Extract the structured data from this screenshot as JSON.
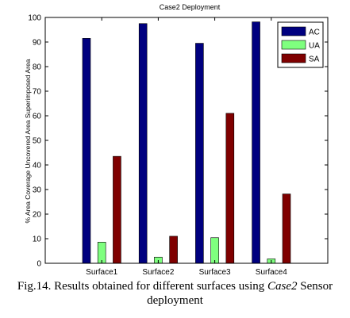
{
  "chart_data": {
    "type": "bar",
    "title": "Case2 Deployment",
    "ylabel": "% Area Coverage Uncovered Area Superimposed Area",
    "xlabel": "",
    "categories": [
      "Surface1",
      "Surface2",
      "Surface3",
      "Surface4"
    ],
    "ylim": [
      0,
      100
    ],
    "yticks": [
      0,
      10,
      20,
      30,
      40,
      50,
      60,
      70,
      80,
      90,
      100
    ],
    "legend_position": "top-right",
    "grid": false,
    "series": [
      {
        "name": "AC",
        "color": "#00007f",
        "values": [
          91.5,
          97.5,
          89.5,
          98.2
        ]
      },
      {
        "name": "UA",
        "color": "#7fff7f",
        "values": [
          8.6,
          2.5,
          10.4,
          1.8
        ]
      },
      {
        "name": "SA",
        "color": "#7f0000",
        "values": [
          43.5,
          11.0,
          61.0,
          28.2
        ]
      }
    ]
  },
  "caption": {
    "pre": "Fig.14. Results obtained for different surfaces using ",
    "italic": "Case2",
    "post": " Sensor deployment"
  }
}
